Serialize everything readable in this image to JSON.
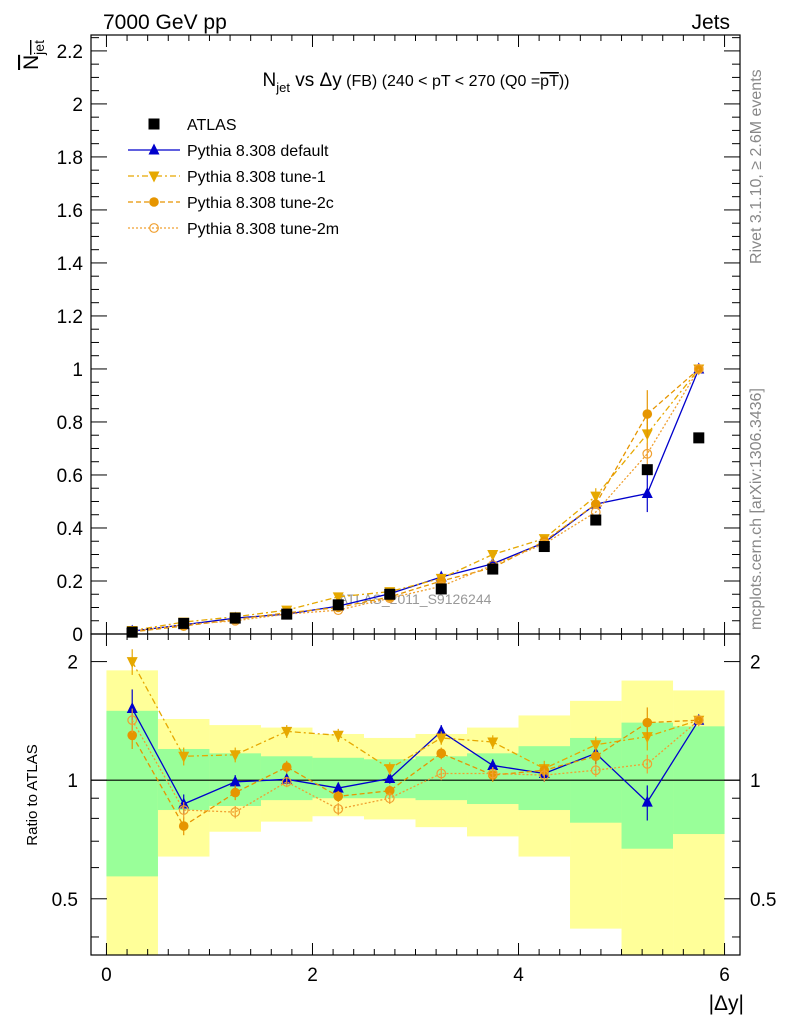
{
  "header": {
    "energy": "7000 GeV pp",
    "category": "Jets",
    "title_main": "N",
    "title_sub": "jet",
    "title_vs": " vs Δy",
    "title_fb": " (FB)",
    "title_cut": " (240 < pT < 270 (Q0 =",
    "title_q0": "pT",
    "title_end": "))"
  },
  "side_text": {
    "rivet": "Rivet 3.1.10, ≥ 2.6M events",
    "mcplots": "mcplots.cern.ch [arXiv:1306.3436]"
  },
  "watermark": "ATLAS_2011_S9126244",
  "axes": {
    "ylabel_main": "N",
    "ylabel_sub": "jet",
    "ylabel_ratio": "Ratio to ATLAS",
    "xlabel": "|Δy|",
    "main_yticks": [
      "0",
      "0.2",
      "0.4",
      "0.6",
      "0.8",
      "1",
      "1.2",
      "1.4",
      "1.6",
      "1.8",
      "2",
      "2.2"
    ],
    "ratio_yticks": [
      "0.5",
      "1",
      "2"
    ],
    "xticks": [
      "0",
      "2",
      "4",
      "6"
    ]
  },
  "chart_data": {
    "type": "scatter",
    "x": [
      0.25,
      0.75,
      1.25,
      1.75,
      2.25,
      2.75,
      3.25,
      3.75,
      4.25,
      4.75,
      5.25,
      5.75
    ],
    "xlim": [
      -0.15,
      6.15
    ],
    "ylim_main": [
      0,
      2.26
    ],
    "ylim_ratio": [
      0.36,
      2.35
    ],
    "ratio_scale": "log",
    "legend_position": "top-left",
    "series": [
      {
        "name": "ATLAS",
        "color": "#000000",
        "marker": "square",
        "values": [
          0.007,
          0.04,
          0.06,
          0.075,
          0.11,
          0.15,
          0.17,
          0.245,
          0.33,
          0.43,
          0.62,
          0.74
        ]
      },
      {
        "name": "Pythia 8.308 default",
        "color": "#0000cc",
        "marker": "triangle-up",
        "dash": "",
        "values": [
          0.011,
          0.035,
          0.06,
          0.075,
          0.105,
          0.152,
          0.215,
          0.265,
          0.345,
          0.49,
          0.53,
          1.0
        ],
        "errors": [
          0,
          0,
          0,
          0,
          0,
          0,
          0,
          0,
          0,
          0,
          0.07,
          0
        ],
        "ratio": [
          1.52,
          0.87,
          0.99,
          1.005,
          0.955,
          1.01,
          1.33,
          1.09,
          1.04,
          1.17,
          0.88,
          1.42
        ],
        "ratio_errors": [
          0.18,
          0.05,
          0.04,
          0.03,
          0.03,
          0.03,
          0.05,
          0.04,
          0.05,
          0.07,
          0.09,
          0
        ]
      },
      {
        "name": "Pythia 8.308 tune-1",
        "color": "#e6a800",
        "marker": "triangle-down",
        "dash": "6,3,2,3",
        "values": [
          0.013,
          0.045,
          0.065,
          0.09,
          0.14,
          0.16,
          0.21,
          0.3,
          0.36,
          0.52,
          0.755,
          1.0
        ],
        "errors": [
          0,
          0,
          0,
          0,
          0,
          0,
          0,
          0,
          0,
          0.03,
          0.06,
          0
        ],
        "ratio": [
          2.0,
          1.15,
          1.16,
          1.33,
          1.3,
          1.07,
          1.28,
          1.25,
          1.07,
          1.23,
          1.29,
          1.42
        ],
        "ratio_errors": [
          0.15,
          0.06,
          0.05,
          0.05,
          0.05,
          0.04,
          0.05,
          0.05,
          0.05,
          0.06,
          0.1,
          0
        ]
      },
      {
        "name": "Pythia 8.308 tune-2c",
        "color": "#e69500",
        "marker": "circle",
        "dash": "5,3",
        "values": [
          0.008,
          0.03,
          0.055,
          0.08,
          0.1,
          0.14,
          0.2,
          0.25,
          0.35,
          0.49,
          0.83,
          1.0
        ],
        "errors": [
          0,
          0,
          0,
          0,
          0,
          0,
          0,
          0,
          0,
          0,
          0.09,
          0
        ],
        "ratio": [
          1.3,
          0.765,
          0.93,
          1.08,
          0.91,
          0.94,
          1.17,
          1.03,
          1.06,
          1.15,
          1.4,
          1.42
        ],
        "ratio_errors": [
          0.1,
          0.04,
          0.04,
          0.04,
          0.03,
          0.03,
          0.04,
          0.04,
          0.04,
          0.05,
          0.13,
          0
        ]
      },
      {
        "name": "Pythia 8.308 tune-2m",
        "color": "#f0a030",
        "marker": "circle-open",
        "dash": "2,2",
        "values": [
          0.01,
          0.035,
          0.05,
          0.075,
          0.09,
          0.135,
          0.18,
          0.26,
          0.34,
          0.46,
          0.68,
          1.0
        ],
        "errors": [
          0,
          0,
          0,
          0,
          0,
          0,
          0,
          0,
          0,
          0,
          0.04,
          0
        ],
        "ratio": [
          1.42,
          0.84,
          0.83,
          0.99,
          0.845,
          0.9,
          1.04,
          1.04,
          1.03,
          1.06,
          1.1,
          1.42
        ],
        "ratio_errors": [
          0.1,
          0.04,
          0.03,
          0.03,
          0.03,
          0.03,
          0.04,
          0.04,
          0.04,
          0.04,
          0.06,
          0
        ]
      }
    ],
    "bands": [
      {
        "lo": 0.1,
        "hi": 1.9,
        "glo": 0.57,
        "ghi": 1.5
      },
      {
        "lo": 0.64,
        "hi": 1.43,
        "glo": 0.84,
        "ghi": 1.2
      },
      {
        "lo": 0.74,
        "hi": 1.38,
        "glo": 0.86,
        "ghi": 1.17
      },
      {
        "lo": 0.785,
        "hi": 1.36,
        "glo": 0.89,
        "ghi": 1.15
      },
      {
        "lo": 0.81,
        "hi": 1.31,
        "glo": 0.9,
        "ghi": 1.14
      },
      {
        "lo": 0.795,
        "hi": 1.28,
        "glo": 0.9,
        "ghi": 1.13
      },
      {
        "lo": 0.76,
        "hi": 1.31,
        "glo": 0.89,
        "ghi": 1.15
      },
      {
        "lo": 0.72,
        "hi": 1.36,
        "glo": 0.87,
        "ghi": 1.17
      },
      {
        "lo": 0.64,
        "hi": 1.46,
        "glo": 0.84,
        "ghi": 1.22
      },
      {
        "lo": 0.42,
        "hi": 1.59,
        "glo": 0.78,
        "ghi": 1.28
      },
      {
        "lo": 0.3,
        "hi": 1.79,
        "glo": 0.67,
        "ghi": 1.4
      },
      {
        "lo": 0.3,
        "hi": 1.69,
        "glo": 0.73,
        "ghi": 1.37
      }
    ]
  }
}
